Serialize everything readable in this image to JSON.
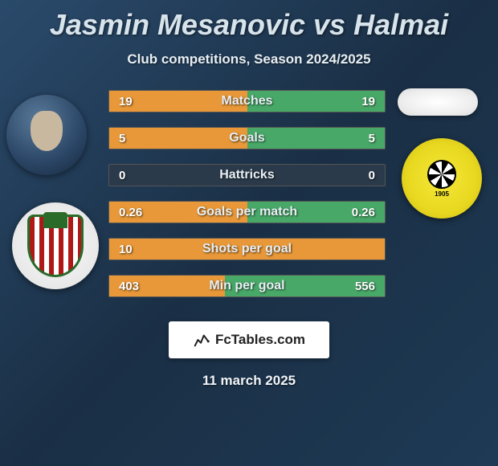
{
  "title": "Jasmin Mesanovic vs Halmai",
  "subtitle": "Club competitions, Season 2024/2025",
  "date": "11 march 2025",
  "footer_brand": "FcTables.com",
  "colors": {
    "bar_left": "#e89838",
    "bar_right": "#48a868",
    "bar_bg": "#2a3a4a",
    "title": "#d8e4ec",
    "text": "#e8eff4"
  },
  "stats": [
    {
      "label": "Matches",
      "left_val": "19",
      "right_val": "19",
      "left_pct": 50,
      "right_pct": 50
    },
    {
      "label": "Goals",
      "left_val": "5",
      "right_val": "5",
      "left_pct": 50,
      "right_pct": 50
    },
    {
      "label": "Hattricks",
      "left_val": "0",
      "right_val": "0",
      "left_pct": 0,
      "right_pct": 0
    },
    {
      "label": "Goals per match",
      "left_val": "0.26",
      "right_val": "0.26",
      "left_pct": 50,
      "right_pct": 50
    },
    {
      "label": "Shots per goal",
      "left_val": "10",
      "right_val": "",
      "left_pct": 100,
      "right_pct": 0
    },
    {
      "label": "Min per goal",
      "left_val": "403",
      "right_val": "556",
      "left_pct": 42,
      "right_pct": 58
    }
  ],
  "club_right_year": "1905"
}
